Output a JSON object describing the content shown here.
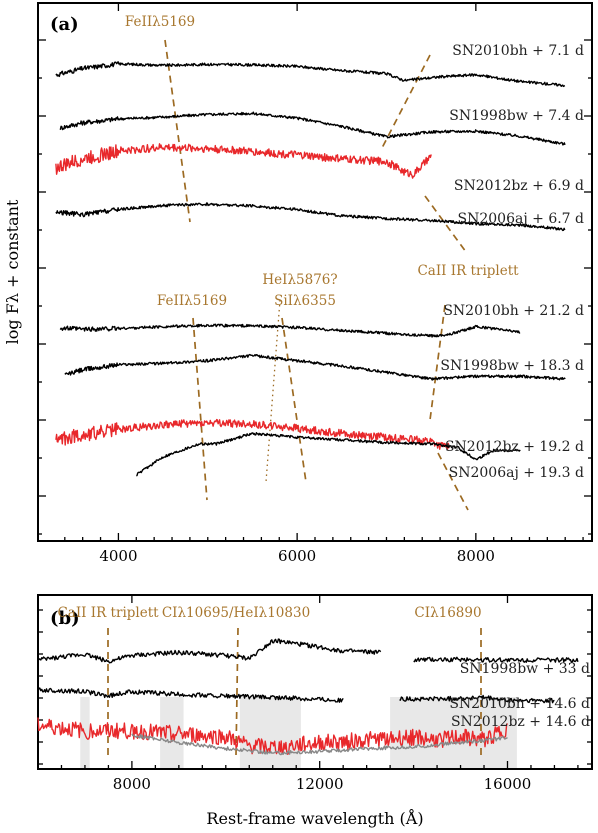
{
  "chart_data": [
    {
      "panel": "(a)",
      "type": "line",
      "xlim": [
        3100,
        9300
      ],
      "xticks": [
        4000,
        6000,
        8000
      ],
      "ylabel": "log Fλ + constant",
      "series": [
        {
          "name": "SN2010bh + 7.1 d",
          "color": "#000000",
          "x": [
            3300,
            3600,
            4000,
            4500,
            5000,
            5500,
            6000,
            6500,
            7000,
            7200,
            7600,
            8000,
            8500,
            9000
          ],
          "y": [
            0.95,
            1.2,
            1.38,
            1.32,
            1.36,
            1.34,
            1.28,
            1.12,
            1.0,
            0.74,
            0.88,
            0.96,
            0.7,
            0.55
          ]
        },
        {
          "name": "SN1998bw + 7.4 d",
          "color": "#000000",
          "x": [
            3350,
            3600,
            4000,
            4500,
            5000,
            5500,
            6000,
            6500,
            7000,
            7500,
            8000,
            8500,
            9000
          ],
          "y": [
            0.2,
            0.4,
            0.55,
            0.62,
            0.72,
            0.76,
            0.58,
            0.26,
            -0.14,
            0.05,
            0.08,
            -0.12,
            -0.42
          ]
        },
        {
          "name": "SN2012bz + 6.9 d",
          "color": "#e8282b",
          "x": [
            3300,
            3600,
            4000,
            4500,
            5000,
            5500,
            6000,
            6500,
            7000,
            7200,
            7300,
            7500
          ],
          "y": [
            -1.05,
            -0.7,
            -0.4,
            -0.25,
            -0.3,
            -0.42,
            -0.55,
            -0.7,
            -0.8,
            -1.2,
            -1.3,
            -0.6
          ]
        },
        {
          "name": "SN2006aj + 6.7 d",
          "color": "#000000",
          "x": [
            3300,
            3600,
            4000,
            4500,
            5000,
            5500,
            6000,
            6500,
            7000,
            7500,
            8000,
            8500,
            9000
          ],
          "y": [
            -1.95,
            -2.05,
            -1.85,
            -1.7,
            -1.65,
            -1.72,
            -1.85,
            -2.1,
            -2.2,
            -2.28,
            -2.4,
            -2.45,
            -2.62
          ]
        },
        {
          "name": "SN2010bh + 21.2 d",
          "color": "#000000",
          "x": [
            3350,
            3600,
            4000,
            4500,
            5000,
            5500,
            6000,
            6500,
            7000,
            7500,
            7700,
            8000,
            8500
          ],
          "y": [
            -3.8,
            -3.85,
            -3.82,
            -3.75,
            -3.7,
            -3.72,
            -3.78,
            -3.9,
            -4.0,
            -4.1,
            -4.05,
            -3.75,
            -3.95
          ]
        },
        {
          "name": "SN1998bw + 18.3 d",
          "color": "#000000",
          "x": [
            3400,
            3600,
            4000,
            4500,
            5000,
            5500,
            6000,
            6500,
            7000,
            7500,
            8000,
            8500,
            9000
          ],
          "y": [
            -4.9,
            -4.7,
            -4.5,
            -4.45,
            -4.35,
            -4.15,
            -4.35,
            -4.55,
            -4.8,
            -5.05,
            -4.95,
            -4.95,
            -5.05
          ]
        },
        {
          "name": "SN2012bz + 19.2 d",
          "color": "#e8282b",
          "x": [
            3300,
            3600,
            4000,
            4500,
            5000,
            5500,
            6000,
            6500,
            7000,
            7500,
            7600,
            7700
          ],
          "y": [
            -6.0,
            -5.8,
            -5.6,
            -5.4,
            -5.35,
            -5.4,
            -5.55,
            -5.75,
            -5.9,
            -6.05,
            -6.25,
            -6.2
          ]
        },
        {
          "name": "SN2006aj + 19.3 d",
          "color": "#000000",
          "x": [
            4200,
            4500,
            4900,
            5100,
            5500,
            6000,
            6500,
            7000,
            7500,
            7800,
            8000,
            8200,
            8500
          ],
          "y": [
            -7.6,
            -6.9,
            -6.4,
            -6.4,
            -6.0,
            -6.15,
            -6.25,
            -6.35,
            -6.4,
            -6.55,
            -7.0,
            -6.65,
            -6.65
          ]
        }
      ],
      "annotations": [
        {
          "text": "FeIIλ5169",
          "x": 4000
        },
        {
          "text": "CaII IR triplett",
          "x": 8000
        },
        {
          "text": "HeIλ5876?",
          "x": 5600
        },
        {
          "text": "FeIIλ5169",
          "x": 4500
        },
        {
          "text": "SiIλ6355",
          "x": 5950
        }
      ]
    },
    {
      "panel": "(b)",
      "type": "line",
      "xlim": [
        6000,
        17800
      ],
      "xticks": [
        8000,
        12000,
        16000
      ],
      "xlabel": "Rest-frame wavelength (Å)",
      "series": [
        {
          "name": "SN1998bw + 33 d",
          "color": "#000000",
          "x": [
            6000,
            7000,
            7500,
            8000,
            9000,
            10000,
            10500,
            11000,
            11700,
            12500,
            13300,
            14000,
            15000,
            16000,
            16500,
            17500
          ],
          "y": [
            0.1,
            0.3,
            0.05,
            0.25,
            0.35,
            0.25,
            0.15,
            0.75,
            0.6,
            0.4,
            0.35,
            0.1,
            0.12,
            0.1,
            0.1,
            0.1
          ]
        },
        {
          "name": "SN2010bh + 14.6 d",
          "color": "#000000",
          "x": [
            6000,
            7000,
            7500,
            8000,
            9000,
            10000,
            11000,
            12000,
            12500,
            13700,
            14500,
            15500,
            16000,
            17000
          ],
          "y": [
            -0.25,
            -0.3,
            -0.45,
            -0.3,
            -0.4,
            -0.45,
            -0.5,
            -0.55,
            -0.6,
            -0.55,
            -0.55,
            -0.5,
            -0.6,
            -0.6
          ]
        },
        {
          "name": "SN2012bz + 14.6 d",
          "color": "#e8282b",
          "x": [
            6000,
            7000,
            8000,
            9000,
            10000,
            10500,
            11000,
            12000,
            13000,
            14000,
            14500,
            15000,
            15500,
            16000
          ],
          "y": [
            -1.0,
            -1.2,
            -1.2,
            -1.3,
            -1.4,
            -1.7,
            -1.75,
            -1.6,
            -1.5,
            -1.4,
            -1.5,
            -1.4,
            -1.5,
            -1.1
          ]
        },
        {
          "name": "",
          "color": "#888888",
          "x": [
            8000,
            9000,
            10000,
            11000,
            12000,
            13000,
            14000,
            15000,
            16000
          ],
          "y": [
            -1.2,
            -1.45,
            -1.65,
            -1.8,
            -1.75,
            -1.65,
            -1.6,
            -1.45,
            -1.3
          ]
        }
      ],
      "annotations": [
        {
          "text": "CaII IR triplett",
          "x": 7550
        },
        {
          "text": "CIλ10695/HeIλ10830",
          "x": 10300
        },
        {
          "text": "CIλ16890",
          "x": 15550
        }
      ],
      "shaded_bands": [
        [
          6900,
          7100
        ],
        [
          8600,
          9100
        ],
        [
          10300,
          11600
        ],
        [
          13500,
          16200
        ]
      ]
    }
  ]
}
